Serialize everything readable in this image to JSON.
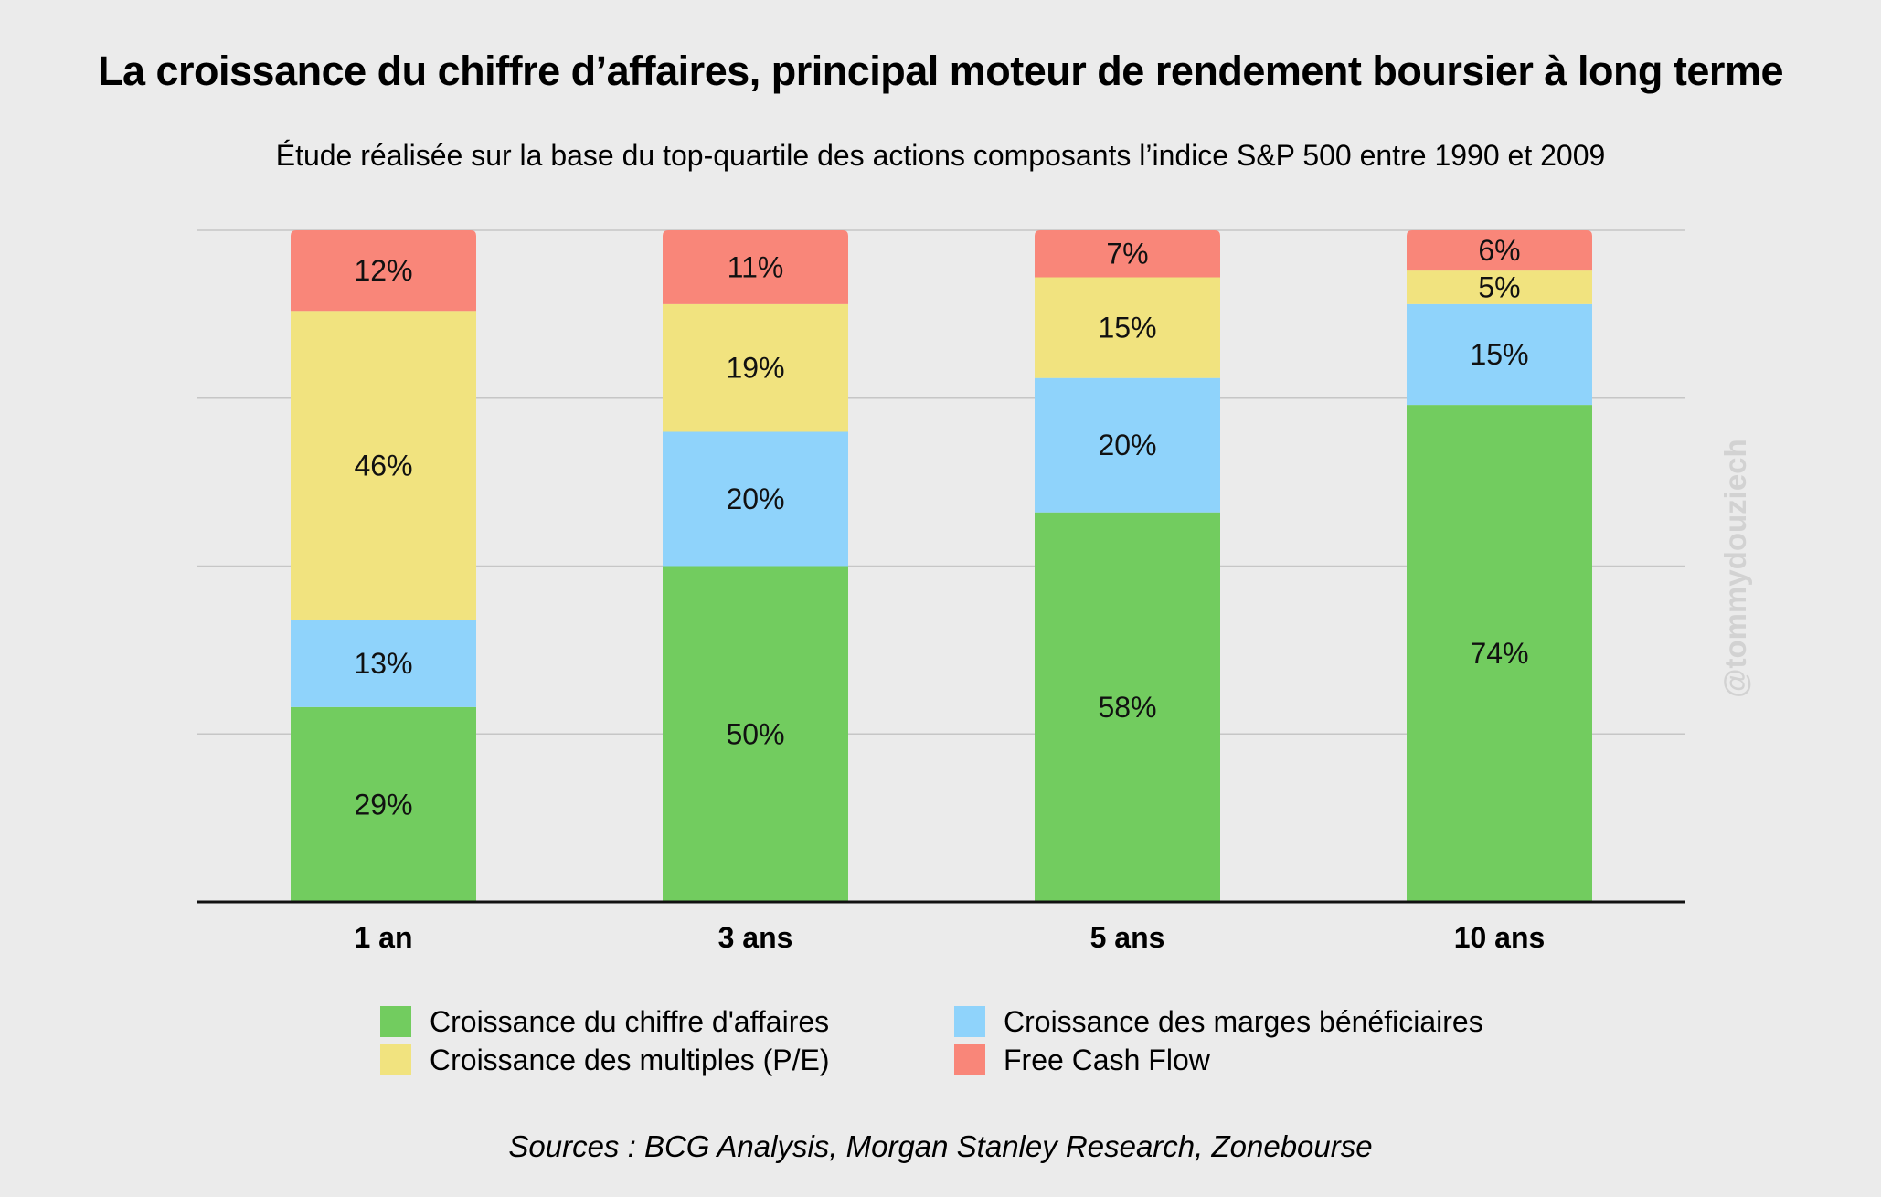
{
  "title": "La croissance du chiffre d’affaires, principal moteur de rendement boursier à long terme",
  "subtitle": "Étude réalisée sur la base du  top-quartile des actions composants l’indice S&P 500 entre 1990 et 2009",
  "watermark": "@tommydouziech",
  "sources": "Sources : BCG Analysis, Morgan Stanley Research, Zonebourse",
  "chart_data": {
    "type": "bar",
    "stacked": true,
    "title": "La croissance du chiffre d’affaires, principal moteur de rendement boursier à long terme",
    "subtitle": "Étude réalisée sur la base du  top-quartile des actions composants l’indice S&P 500 entre 1990 et 2009",
    "xlabel": "",
    "ylabel": "",
    "ylim": [
      0,
      100
    ],
    "grid": true,
    "legend_position": "bottom",
    "categories": [
      "1 an",
      "3 ans",
      "5 ans",
      "10 ans"
    ],
    "series": [
      {
        "name": "Croissance du chiffre d'affaires",
        "color": "#72cc5f",
        "values": [
          29,
          50,
          58,
          74
        ],
        "labels": [
          "29%",
          "50%",
          "58%",
          "74%"
        ]
      },
      {
        "name": "Croissance des marges bénéficiaires",
        "color": "#8fd3fb",
        "values": [
          13,
          20,
          20,
          15
        ],
        "labels": [
          "13%",
          "20%",
          "20%",
          "15%"
        ]
      },
      {
        "name": "Croissance des multiples (P/E)",
        "color": "#f1e37f",
        "values": [
          46,
          19,
          15,
          5
        ],
        "labels": [
          "46%",
          "19%",
          "15%",
          "5%"
        ]
      },
      {
        "name": "Free Cash Flow",
        "color": "#f98679",
        "values": [
          12,
          11,
          7,
          6
        ],
        "labels": [
          "12%",
          "11%",
          "7%",
          "6%"
        ]
      }
    ]
  },
  "legend": {
    "items": [
      {
        "label": "Croissance du chiffre d'affaires",
        "color": "#72cc5f"
      },
      {
        "label": "Croissance des marges bénéficiaires",
        "color": "#8fd3fb"
      },
      {
        "label": "Croissance des multiples (P/E)",
        "color": "#f1e37f"
      },
      {
        "label": "Free Cash Flow",
        "color": "#f98679"
      }
    ]
  }
}
